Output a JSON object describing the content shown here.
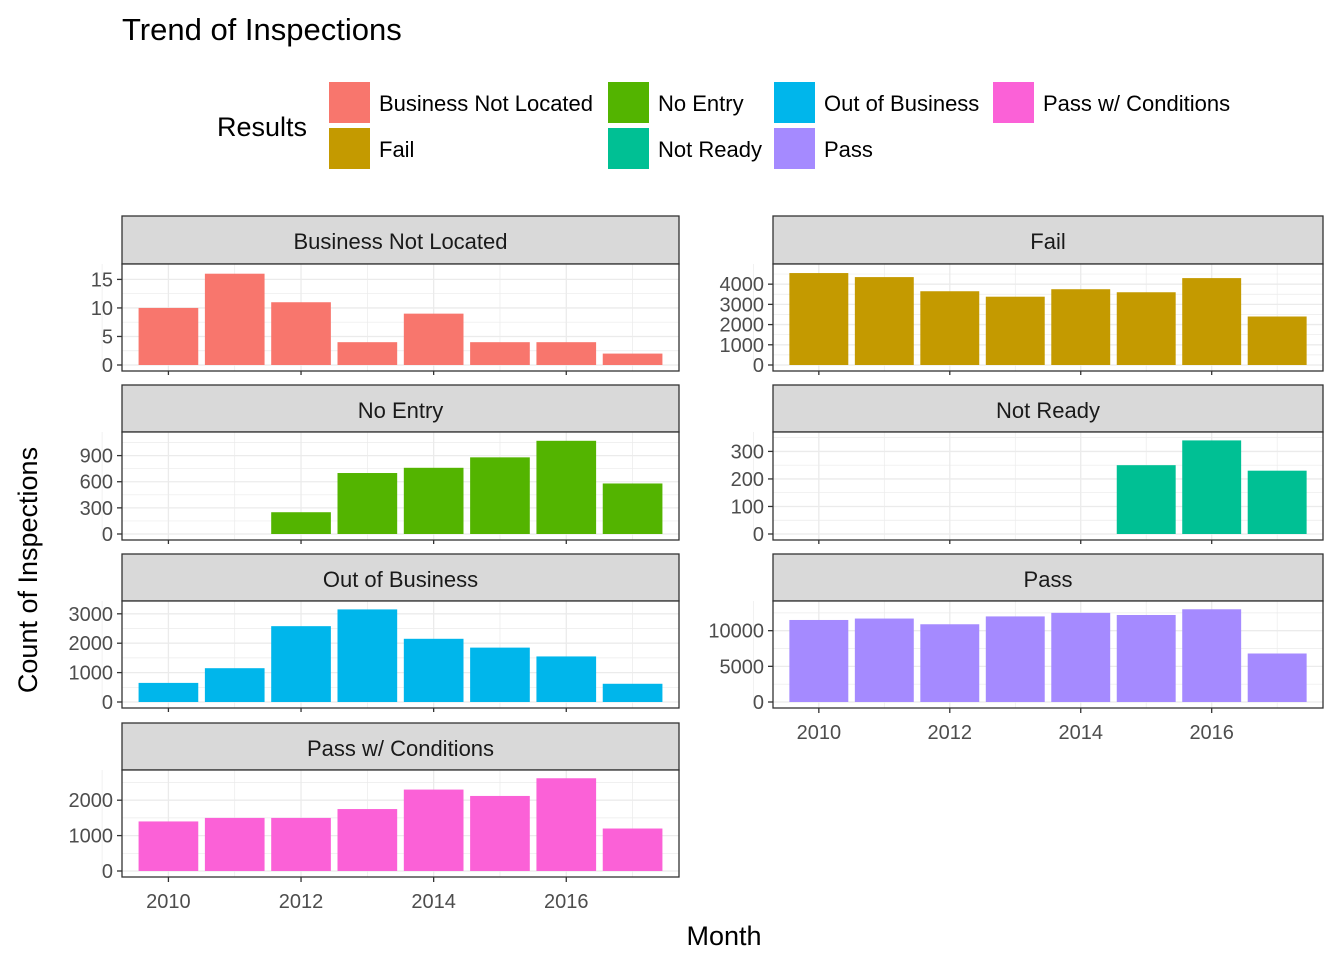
{
  "chart_data": {
    "type": "bar",
    "title": "Trend of Inspections",
    "xlabel": "Month",
    "ylabel": "Count of Inspections",
    "legend": {
      "title": "Results",
      "position": "top",
      "entries": [
        {
          "name": "Business Not Located",
          "color": "#F8766D"
        },
        {
          "name": "Fail",
          "color": "#C49A00"
        },
        {
          "name": "No Entry",
          "color": "#53B400"
        },
        {
          "name": "Not Ready",
          "color": "#00C094"
        },
        {
          "name": "Out of Business",
          "color": "#00B6EB"
        },
        {
          "name": "Pass",
          "color": "#A58AFF"
        },
        {
          "name": "Pass w/ Conditions",
          "color": "#FB61D7"
        }
      ]
    },
    "x": [
      2010,
      2011,
      2012,
      2013,
      2014,
      2015,
      2016,
      2017
    ],
    "x_ticks": [
      "2010",
      "2012",
      "2014",
      "2016"
    ],
    "grid": true,
    "facets": [
      {
        "name": "Business Not Located",
        "color": "#F8766D",
        "values": [
          10,
          16,
          11,
          4,
          9,
          4,
          4,
          2
        ],
        "ylim": [
          0,
          17
        ],
        "yticks": [
          "0",
          "5",
          "10",
          "15"
        ]
      },
      {
        "name": "Fail",
        "color": "#C49A00",
        "values": [
          4550,
          4350,
          3650,
          3380,
          3750,
          3600,
          4300,
          2400
        ],
        "ylim": [
          0,
          4800
        ],
        "yticks": [
          "0",
          "1000",
          "2000",
          "3000",
          "4000"
        ]
      },
      {
        "name": "No Entry",
        "color": "#53B400",
        "values": [
          0,
          0,
          250,
          700,
          760,
          880,
          1070,
          580
        ],
        "ylim": [
          0,
          1125
        ],
        "yticks": [
          "0",
          "300",
          "600",
          "900"
        ]
      },
      {
        "name": "Not Ready",
        "color": "#00C094",
        "values": [
          0,
          0,
          0,
          0,
          0,
          250,
          340,
          230
        ],
        "ylim": [
          0,
          356
        ],
        "yticks": [
          "0",
          "100",
          "200",
          "300"
        ]
      },
      {
        "name": "Out of Business",
        "color": "#00B6EB",
        "values": [
          650,
          1150,
          2580,
          3150,
          2150,
          1850,
          1550,
          620
        ],
        "ylim": [
          0,
          3300
        ],
        "yticks": [
          "0",
          "1000",
          "2000",
          "3000"
        ]
      },
      {
        "name": "Pass",
        "color": "#A58AFF",
        "values": [
          11500,
          11700,
          10900,
          12000,
          12500,
          12200,
          13000,
          6800
        ],
        "ylim": [
          0,
          13600
        ],
        "yticks": [
          "0",
          "5000",
          "10000"
        ]
      },
      {
        "name": "Pass w/ Conditions",
        "color": "#FB61D7",
        "values": [
          1400,
          1500,
          1500,
          1750,
          2300,
          2120,
          2620,
          1200
        ],
        "ylim": [
          0,
          2740
        ],
        "yticks": [
          "0",
          "1000",
          "2000"
        ]
      }
    ]
  }
}
